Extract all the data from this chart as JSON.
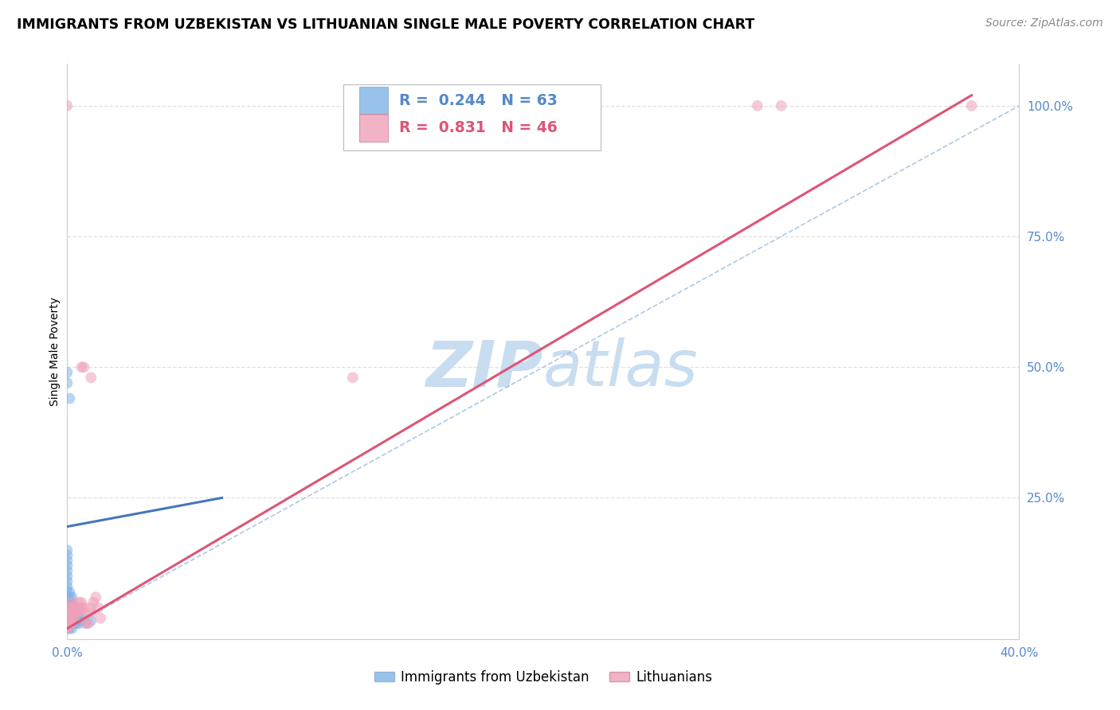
{
  "title": "IMMIGRANTS FROM UZBEKISTAN VS LITHUANIAN SINGLE MALE POVERTY CORRELATION CHART",
  "source": "Source: ZipAtlas.com",
  "ylabel": "Single Male Poverty",
  "legend_blue_r": "0.244",
  "legend_blue_n": "63",
  "legend_pink_r": "0.831",
  "legend_pink_n": "46",
  "legend_blue_label": "Immigrants from Uzbekistan",
  "legend_pink_label": "Lithuanians",
  "xlim": [
    0.0,
    0.4
  ],
  "ylim": [
    -0.02,
    1.08
  ],
  "blue_scatter": [
    [
      0.0,
      0.0
    ],
    [
      0.0,
      0.002
    ],
    [
      0.0,
      0.005
    ],
    [
      0.0,
      0.008
    ],
    [
      0.0,
      0.01
    ],
    [
      0.0,
      0.012
    ],
    [
      0.0,
      0.015
    ],
    [
      0.0,
      0.018
    ],
    [
      0.0,
      0.02
    ],
    [
      0.0,
      0.022
    ],
    [
      0.0,
      0.025
    ],
    [
      0.0,
      0.028
    ],
    [
      0.0,
      0.03
    ],
    [
      0.0,
      0.035
    ],
    [
      0.0,
      0.04
    ],
    [
      0.0,
      0.045
    ],
    [
      0.0,
      0.05
    ],
    [
      0.0,
      0.055
    ],
    [
      0.0,
      0.06
    ],
    [
      0.0,
      0.07
    ],
    [
      0.0,
      0.08
    ],
    [
      0.0,
      0.09
    ],
    [
      0.0,
      0.1
    ],
    [
      0.0,
      0.11
    ],
    [
      0.0,
      0.12
    ],
    [
      0.0,
      0.13
    ],
    [
      0.0,
      0.14
    ],
    [
      0.0,
      0.15
    ],
    [
      0.001,
      0.0
    ],
    [
      0.001,
      0.005
    ],
    [
      0.001,
      0.01
    ],
    [
      0.001,
      0.015
    ],
    [
      0.001,
      0.02
    ],
    [
      0.001,
      0.025
    ],
    [
      0.001,
      0.03
    ],
    [
      0.001,
      0.035
    ],
    [
      0.001,
      0.04
    ],
    [
      0.001,
      0.05
    ],
    [
      0.001,
      0.06
    ],
    [
      0.001,
      0.07
    ],
    [
      0.002,
      0.0
    ],
    [
      0.002,
      0.01
    ],
    [
      0.002,
      0.02
    ],
    [
      0.002,
      0.03
    ],
    [
      0.002,
      0.04
    ],
    [
      0.002,
      0.05
    ],
    [
      0.002,
      0.06
    ],
    [
      0.003,
      0.01
    ],
    [
      0.003,
      0.02
    ],
    [
      0.003,
      0.03
    ],
    [
      0.003,
      0.04
    ],
    [
      0.004,
      0.01
    ],
    [
      0.004,
      0.02
    ],
    [
      0.005,
      0.01
    ],
    [
      0.005,
      0.02
    ],
    [
      0.005,
      0.03
    ],
    [
      0.006,
      0.015
    ],
    [
      0.007,
      0.02
    ],
    [
      0.008,
      0.01
    ],
    [
      0.01,
      0.015
    ],
    [
      0.0,
      0.47
    ],
    [
      0.0,
      0.49
    ],
    [
      0.001,
      0.44
    ]
  ],
  "pink_scatter": [
    [
      0.0,
      0.0
    ],
    [
      0.0,
      0.005
    ],
    [
      0.0,
      0.01
    ],
    [
      0.0,
      0.015
    ],
    [
      0.0,
      0.02
    ],
    [
      0.0,
      0.025
    ],
    [
      0.0,
      0.03
    ],
    [
      0.0,
      1.0
    ],
    [
      0.001,
      0.005
    ],
    [
      0.001,
      0.01
    ],
    [
      0.001,
      0.015
    ],
    [
      0.001,
      0.02
    ],
    [
      0.001,
      0.03
    ],
    [
      0.001,
      0.04
    ],
    [
      0.002,
      0.01
    ],
    [
      0.002,
      0.02
    ],
    [
      0.002,
      0.03
    ],
    [
      0.002,
      0.04
    ],
    [
      0.002,
      0.05
    ],
    [
      0.003,
      0.02
    ],
    [
      0.003,
      0.03
    ],
    [
      0.003,
      0.035
    ],
    [
      0.003,
      0.04
    ],
    [
      0.004,
      0.03
    ],
    [
      0.004,
      0.035
    ],
    [
      0.005,
      0.04
    ],
    [
      0.005,
      0.05
    ],
    [
      0.006,
      0.04
    ],
    [
      0.006,
      0.05
    ],
    [
      0.007,
      0.03
    ],
    [
      0.007,
      0.04
    ],
    [
      0.008,
      0.01
    ],
    [
      0.009,
      0.01
    ],
    [
      0.01,
      0.03
    ],
    [
      0.01,
      0.04
    ],
    [
      0.011,
      0.05
    ],
    [
      0.012,
      0.06
    ],
    [
      0.013,
      0.04
    ],
    [
      0.014,
      0.02
    ],
    [
      0.006,
      0.5
    ],
    [
      0.007,
      0.5
    ],
    [
      0.01,
      0.48
    ],
    [
      0.12,
      0.48
    ],
    [
      0.29,
      1.0
    ],
    [
      0.3,
      1.0
    ],
    [
      0.38,
      1.0
    ]
  ],
  "blue_line_x": [
    0.0,
    0.065
  ],
  "blue_line_y": [
    0.195,
    0.25
  ],
  "pink_line_x": [
    0.0,
    0.38
  ],
  "pink_line_y": [
    0.0,
    1.02
  ],
  "grey_line_x": [
    0.0,
    0.4
  ],
  "grey_line_y": [
    0.0,
    1.0
  ],
  "background_color": "#ffffff",
  "grid_color": "#e0e0e0",
  "blue_color": "#7fb3e8",
  "pink_color": "#f0a0b8",
  "blue_line_color": "#4477bb",
  "pink_line_color": "#dd5577",
  "grey_line_color": "#99bbdd",
  "scatter_alpha": 0.55,
  "scatter_size": 100,
  "title_fontsize": 12.5,
  "source_fontsize": 10,
  "axis_label_fontsize": 10,
  "tick_fontsize": 11,
  "tick_label_color": "#5588cc",
  "watermark_color": "#c8ddf0",
  "ytick_vals": [
    0.25,
    0.5,
    0.75,
    1.0
  ],
  "ytick_labels": [
    "25.0%",
    "50.0%",
    "75.0%",
    "100.0%"
  ],
  "xtick_vals": [
    0.0,
    0.4
  ],
  "xtick_labels": [
    "0.0%",
    "40.0%"
  ]
}
